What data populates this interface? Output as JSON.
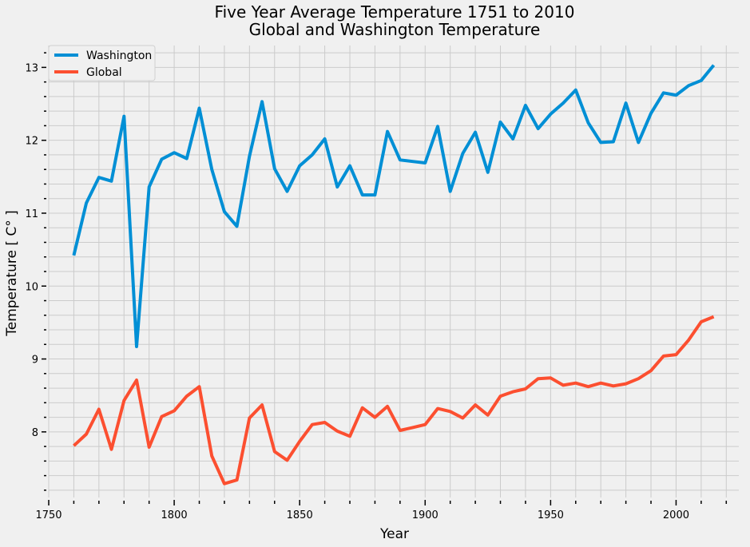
{
  "chart_data": {
    "type": "line",
    "title": "Five Year Average Temperature 1751 to 2010",
    "subtitle": "Global and Washington Temperature",
    "xlabel": "Year",
    "ylabel": "Temperature [ C° ]",
    "xlim": [
      1750,
      2025
    ],
    "ylim": [
      7.1,
      13.3
    ],
    "x_ticks": [
      1750,
      1800,
      1850,
      1900,
      1950,
      2000
    ],
    "y_ticks": [
      8,
      9,
      10,
      11,
      12,
      13
    ],
    "grid": true,
    "legend_position": "top-left",
    "x": [
      1760,
      1765,
      1770,
      1775,
      1780,
      1785,
      1790,
      1795,
      1800,
      1805,
      1810,
      1815,
      1820,
      1825,
      1830,
      1835,
      1840,
      1845,
      1850,
      1855,
      1860,
      1865,
      1870,
      1875,
      1880,
      1885,
      1890,
      1895,
      1900,
      1905,
      1910,
      1915,
      1920,
      1925,
      1930,
      1935,
      1940,
      1945,
      1950,
      1955,
      1960,
      1965,
      1970,
      1975,
      1980,
      1985,
      1990,
      1995,
      2000,
      2005,
      2010,
      2015
    ],
    "series": [
      {
        "name": "Washington",
        "color": "#008fd5",
        "values": [
          10.42,
          11.14,
          11.49,
          11.44,
          12.33,
          9.17,
          11.36,
          11.74,
          11.83,
          11.75,
          12.44,
          11.6,
          11.02,
          10.82,
          11.78,
          12.53,
          11.61,
          11.3,
          11.65,
          11.8,
          12.02,
          11.36,
          11.65,
          11.25,
          11.25,
          12.12,
          11.73,
          11.71,
          11.69,
          12.19,
          11.3,
          11.82,
          12.11,
          11.56,
          12.25,
          12.02,
          12.48,
          12.16,
          12.36,
          12.51,
          12.69,
          12.24,
          11.97,
          11.98,
          12.51,
          11.97,
          12.37,
          12.65,
          12.62,
          12.75,
          12.82,
          13.03
        ]
      },
      {
        "name": "Global",
        "color": "#fc4f30",
        "values": [
          7.81,
          7.97,
          8.31,
          7.76,
          8.43,
          8.71,
          7.79,
          8.21,
          8.29,
          8.49,
          8.62,
          7.67,
          7.29,
          7.34,
          8.19,
          8.37,
          7.73,
          7.61,
          7.87,
          8.1,
          8.13,
          8.01,
          7.94,
          8.33,
          8.2,
          8.35,
          8.02,
          8.06,
          8.1,
          8.32,
          8.28,
          8.19,
          8.37,
          8.23,
          8.49,
          8.55,
          8.59,
          8.73,
          8.74,
          8.64,
          8.67,
          8.62,
          8.67,
          8.63,
          8.66,
          8.73,
          8.84,
          9.04,
          9.06,
          9.26,
          9.51,
          9.58
        ]
      }
    ]
  }
}
